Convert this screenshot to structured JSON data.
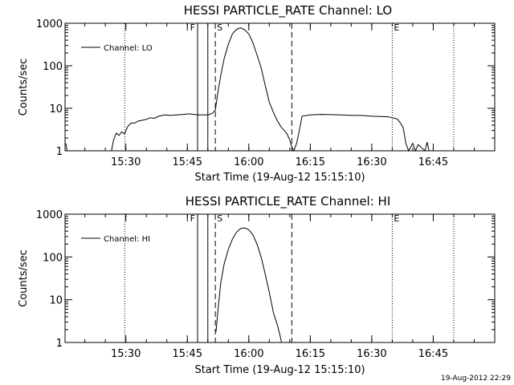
{
  "footer": {
    "timestamp": "19-Aug-2012 22:29"
  },
  "chart_data": [
    {
      "type": "line",
      "title": "HESSI PARTICLE_RATE Channel: LO",
      "xlabel": "Start Time (19-Aug-12 15:15:10)",
      "ylabel": "Counts/sec",
      "yscale": "log",
      "ylim": [
        1,
        1000
      ],
      "xlim": [
        "15:15:10",
        "17:00"
      ],
      "x_ticks": [
        "15:30",
        "15:45",
        "16:00",
        "16:15",
        "16:30",
        "16:45"
      ],
      "y_ticks": [
        "1",
        "10",
        "100",
        "1000"
      ],
      "legend": "Channel: LO",
      "legend_position": "top-left",
      "markers": [
        {
          "label": "F",
          "time": "15:47:30",
          "style": "solid"
        },
        {
          "label": "",
          "time": "15:50:00",
          "style": "solid"
        },
        {
          "label": "S",
          "time": "15:51:50",
          "style": "dashed"
        },
        {
          "label": "",
          "time": "16:10:30",
          "style": "dashed"
        },
        {
          "label": "E",
          "time": "16:35:00",
          "style": "dotted"
        },
        {
          "label": "",
          "time": "15:29:45",
          "style": "dotted"
        },
        {
          "label": "",
          "time": "16:50:00",
          "style": "dotted"
        }
      ],
      "series": [
        {
          "name": "Channel: LO",
          "x": [
            "15:15:20",
            "15:15:40",
            "15:26:30",
            "15:27:00",
            "15:27:40",
            "15:28:20",
            "15:29:00",
            "15:29:40",
            "15:30:30",
            "15:31:20",
            "15:32:10",
            "15:33:00",
            "15:33:50",
            "15:35:00",
            "15:36:00",
            "15:37:00",
            "15:38:00",
            "15:39:30",
            "15:41:00",
            "15:42:30",
            "15:44:00",
            "15:45:30",
            "15:46:30",
            "15:47:30",
            "15:48:10",
            "15:49:00",
            "15:50:00",
            "15:51:00",
            "15:51:50",
            "15:52:30",
            "15:53:10",
            "15:54:00",
            "15:55:00",
            "15:56:00",
            "15:57:00",
            "15:58:00",
            "15:59:00",
            "16:00:00",
            "16:01:00",
            "16:02:00",
            "16:03:00",
            "16:04:00",
            "16:05:00",
            "16:06:00",
            "16:07:00",
            "16:08:00",
            "16:08:40",
            "16:09:20",
            "16:10:00",
            "16:10:30",
            "16:11:00",
            "16:11:40",
            "16:12:20",
            "16:13:00",
            "16:15:00",
            "16:17:30",
            "16:20:00",
            "16:22:30",
            "16:25:00",
            "16:27:30",
            "16:30:00",
            "16:32:00",
            "16:34:00",
            "16:35:00",
            "16:35:40",
            "16:36:20",
            "16:37:00",
            "16:37:40",
            "16:38:20",
            "16:39:00",
            "16:40:00",
            "16:40:40",
            "16:41:20",
            "16:43:00",
            "16:43:30",
            "16:44:00"
          ],
          "values": [
            1.5,
            1,
            1,
            1.8,
            2.6,
            2.3,
            2.8,
            2.5,
            3.8,
            4.5,
            4.5,
            5,
            5.2,
            5.5,
            6,
            5.8,
            6.5,
            7,
            6.8,
            7,
            7.2,
            7.4,
            7.2,
            7,
            7,
            7,
            7,
            7.5,
            9,
            25,
            60,
            150,
            320,
            560,
            720,
            780,
            700,
            560,
            350,
            180,
            90,
            35,
            14,
            8,
            5,
            3.5,
            3,
            2.5,
            1.8,
            1.2,
            1,
            1.5,
            3,
            6.5,
            7,
            7.2,
            7.1,
            7,
            6.8,
            6.8,
            6.5,
            6.4,
            6.3,
            6,
            5.8,
            5.5,
            4.5,
            3.5,
            1.5,
            1,
            1.5,
            1,
            1.4,
            1,
            1.6,
            1
          ]
        }
      ]
    },
    {
      "type": "line",
      "title": "HESSI PARTICLE_RATE Channel: HI",
      "xlabel": "Start Time (19-Aug-12 15:15:10)",
      "ylabel": "Counts/sec",
      "yscale": "log",
      "ylim": [
        1,
        1000
      ],
      "xlim": [
        "15:15:10",
        "17:00"
      ],
      "x_ticks": [
        "15:30",
        "15:45",
        "16:00",
        "16:15",
        "16:30",
        "16:45"
      ],
      "y_ticks": [
        "1",
        "10",
        "100",
        "1000"
      ],
      "legend": "Channel: HI",
      "legend_position": "top-left",
      "markers": [
        {
          "label": "F",
          "time": "15:47:30",
          "style": "solid"
        },
        {
          "label": "",
          "time": "15:50:00",
          "style": "solid"
        },
        {
          "label": "S",
          "time": "15:51:50",
          "style": "dashed"
        },
        {
          "label": "",
          "time": "16:10:30",
          "style": "dashed"
        },
        {
          "label": "E",
          "time": "16:35:00",
          "style": "dotted"
        },
        {
          "label": "",
          "time": "15:29:45",
          "style": "dotted"
        },
        {
          "label": "",
          "time": "16:50:00",
          "style": "dotted"
        }
      ],
      "series": [
        {
          "name": "Channel: HI",
          "x": [
            "15:52:00",
            "15:52:30",
            "15:53:10",
            "15:54:00",
            "15:55:00",
            "15:56:00",
            "15:57:00",
            "15:58:00",
            "15:59:00",
            "16:00:00",
            "16:01:00",
            "16:02:00",
            "16:03:00",
            "16:04:00",
            "16:05:00",
            "16:06:00",
            "16:07:00",
            "16:07:40",
            "16:08:00"
          ],
          "values": [
            1.8,
            6,
            25,
            70,
            150,
            260,
            380,
            460,
            480,
            430,
            330,
            200,
            100,
            40,
            15,
            5,
            2.5,
            1.4,
            1
          ]
        }
      ]
    }
  ]
}
